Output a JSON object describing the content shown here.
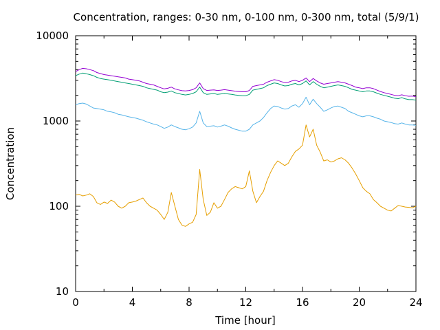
{
  "chart_data": {
    "type": "line",
    "title": "Concentration, ranges: 0-30 nm, 0-100 nm, 0-300 nm, total (5/9/1)",
    "xlabel": "Time [hour]",
    "ylabel": "Concentration",
    "xlim": [
      0,
      24
    ],
    "ylim": [
      10,
      10000
    ],
    "yscale": "log",
    "grid": false,
    "legend": "none",
    "xticks": [
      0,
      4,
      8,
      12,
      16,
      20,
      24
    ],
    "xtick_labels": [
      "0",
      "4",
      "8",
      "12",
      "16",
      "20",
      "24"
    ],
    "yticks": [
      10,
      100,
      1000,
      10000
    ],
    "ytick_labels": [
      "10",
      "100",
      "1000",
      "10000"
    ],
    "series": [
      {
        "color": "#e69f00",
        "x": [
          0,
          0.25,
          0.5,
          0.75,
          1,
          1.25,
          1.5,
          1.75,
          2,
          2.25,
          2.5,
          2.75,
          3,
          3.25,
          3.5,
          3.75,
          4,
          4.25,
          4.5,
          4.75,
          5,
          5.25,
          5.5,
          5.75,
          6,
          6.25,
          6.5,
          6.75,
          7,
          7.25,
          7.5,
          7.75,
          8,
          8.25,
          8.5,
          8.75,
          9,
          9.25,
          9.5,
          9.75,
          10,
          10.25,
          10.5,
          10.75,
          11,
          11.25,
          11.5,
          11.75,
          12,
          12.25,
          12.5,
          12.75,
          13,
          13.25,
          13.5,
          13.75,
          14,
          14.25,
          14.5,
          14.75,
          15,
          15.25,
          15.5,
          15.75,
          16,
          16.25,
          16.5,
          16.75,
          17,
          17.25,
          17.5,
          17.75,
          18,
          18.25,
          18.5,
          18.75,
          19,
          19.25,
          19.5,
          19.75,
          20,
          20.25,
          20.5,
          20.75,
          21,
          21.25,
          21.5,
          21.75,
          22,
          22.25,
          22.5,
          22.75,
          23,
          23.25,
          23.5,
          23.75,
          24
        ],
        "y": [
          135,
          138,
          132,
          135,
          140,
          130,
          110,
          105,
          112,
          108,
          118,
          112,
          100,
          95,
          100,
          110,
          112,
          115,
          120,
          125,
          110,
          100,
          95,
          90,
          80,
          70,
          85,
          145,
          100,
          70,
          60,
          58,
          62,
          65,
          80,
          270,
          120,
          78,
          85,
          110,
          95,
          100,
          120,
          145,
          160,
          170,
          165,
          160,
          170,
          260,
          150,
          110,
          130,
          150,
          200,
          250,
          300,
          340,
          320,
          300,
          320,
          380,
          440,
          470,
          520,
          900,
          650,
          800,
          520,
          430,
          340,
          350,
          330,
          340,
          360,
          370,
          350,
          320,
          280,
          240,
          200,
          165,
          150,
          140,
          120,
          110,
          100,
          95,
          90,
          88,
          95,
          102,
          100,
          98,
          97,
          96,
          100
        ]
      },
      {
        "color": "#56b4e9",
        "x": [
          0,
          0.25,
          0.5,
          0.75,
          1,
          1.25,
          1.5,
          1.75,
          2,
          2.25,
          2.5,
          2.75,
          3,
          3.25,
          3.5,
          3.75,
          4,
          4.25,
          4.5,
          4.75,
          5,
          5.25,
          5.5,
          5.75,
          6,
          6.25,
          6.5,
          6.75,
          7,
          7.25,
          7.5,
          7.75,
          8,
          8.25,
          8.5,
          8.75,
          9,
          9.25,
          9.5,
          9.75,
          10,
          10.25,
          10.5,
          10.75,
          11,
          11.25,
          11.5,
          11.75,
          12,
          12.25,
          12.5,
          12.75,
          13,
          13.25,
          13.5,
          13.75,
          14,
          14.25,
          14.5,
          14.75,
          15,
          15.25,
          15.5,
          15.75,
          16,
          16.25,
          16.5,
          16.75,
          17,
          17.25,
          17.5,
          17.75,
          18,
          18.25,
          18.5,
          18.75,
          19,
          19.25,
          19.5,
          19.75,
          20,
          20.25,
          20.5,
          20.75,
          21,
          21.25,
          21.5,
          21.75,
          22,
          22.25,
          22.5,
          22.75,
          23,
          23.25,
          23.5,
          23.75,
          24
        ],
        "y": [
          1550,
          1600,
          1620,
          1580,
          1500,
          1420,
          1400,
          1380,
          1350,
          1300,
          1280,
          1250,
          1200,
          1180,
          1150,
          1120,
          1100,
          1080,
          1050,
          1020,
          980,
          950,
          920,
          900,
          860,
          820,
          850,
          900,
          860,
          830,
          800,
          790,
          810,
          850,
          950,
          1300,
          950,
          860,
          870,
          880,
          850,
          870,
          900,
          870,
          830,
          800,
          780,
          760,
          760,
          800,
          900,
          950,
          1000,
          1100,
          1250,
          1400,
          1500,
          1480,
          1420,
          1380,
          1400,
          1500,
          1550,
          1450,
          1600,
          1900,
          1550,
          1800,
          1600,
          1450,
          1300,
          1350,
          1420,
          1480,
          1500,
          1450,
          1400,
          1300,
          1250,
          1200,
          1150,
          1120,
          1150,
          1150,
          1120,
          1080,
          1050,
          1000,
          980,
          960,
          930,
          920,
          950,
          920,
          900,
          900,
          890
        ]
      },
      {
        "color": "#009e73",
        "x": [
          0,
          0.25,
          0.5,
          0.75,
          1,
          1.25,
          1.5,
          1.75,
          2,
          2.25,
          2.5,
          2.75,
          3,
          3.25,
          3.5,
          3.75,
          4,
          4.25,
          4.5,
          4.75,
          5,
          5.25,
          5.5,
          5.75,
          6,
          6.25,
          6.5,
          6.75,
          7,
          7.25,
          7.5,
          7.75,
          8,
          8.25,
          8.5,
          8.75,
          9,
          9.25,
          9.5,
          9.75,
          10,
          10.25,
          10.5,
          10.75,
          11,
          11.25,
          11.5,
          11.75,
          12,
          12.25,
          12.5,
          12.75,
          13,
          13.25,
          13.5,
          13.75,
          14,
          14.25,
          14.5,
          14.75,
          15,
          15.25,
          15.5,
          15.75,
          16,
          16.25,
          16.5,
          16.75,
          17,
          17.25,
          17.5,
          17.75,
          18,
          18.25,
          18.5,
          18.75,
          19,
          19.25,
          19.5,
          19.75,
          20,
          20.25,
          20.5,
          20.75,
          21,
          21.25,
          21.5,
          21.75,
          22,
          22.25,
          22.5,
          22.75,
          23,
          23.25,
          23.5,
          23.75,
          24
        ],
        "y": [
          3400,
          3550,
          3650,
          3580,
          3500,
          3400,
          3250,
          3150,
          3100,
          3050,
          3000,
          2950,
          2900,
          2850,
          2800,
          2750,
          2700,
          2650,
          2600,
          2550,
          2450,
          2400,
          2350,
          2300,
          2200,
          2150,
          2180,
          2250,
          2150,
          2100,
          2050,
          2020,
          2050,
          2100,
          2200,
          2500,
          2150,
          2050,
          2080,
          2100,
          2050,
          2080,
          2100,
          2080,
          2050,
          2020,
          2000,
          1980,
          1980,
          2050,
          2300,
          2350,
          2400,
          2450,
          2600,
          2700,
          2800,
          2750,
          2650,
          2580,
          2600,
          2700,
          2750,
          2650,
          2750,
          2950,
          2650,
          2900,
          2700,
          2550,
          2450,
          2500,
          2550,
          2600,
          2650,
          2600,
          2550,
          2450,
          2350,
          2300,
          2250,
          2200,
          2250,
          2250,
          2200,
          2120,
          2050,
          2000,
          1950,
          1900,
          1850,
          1830,
          1880,
          1820,
          1780,
          1780,
          1760
        ]
      },
      {
        "color": "#9400d3",
        "x": [
          0,
          0.25,
          0.5,
          0.75,
          1,
          1.25,
          1.5,
          1.75,
          2,
          2.25,
          2.5,
          2.75,
          3,
          3.25,
          3.5,
          3.75,
          4,
          4.25,
          4.5,
          4.75,
          5,
          5.25,
          5.5,
          5.75,
          6,
          6.25,
          6.5,
          6.75,
          7,
          7.25,
          7.5,
          7.75,
          8,
          8.25,
          8.5,
          8.75,
          9,
          9.25,
          9.5,
          9.75,
          10,
          10.25,
          10.5,
          10.75,
          11,
          11.25,
          11.5,
          11.75,
          12,
          12.25,
          12.5,
          12.75,
          13,
          13.25,
          13.5,
          13.75,
          14,
          14.25,
          14.5,
          14.75,
          15,
          15.25,
          15.5,
          15.75,
          16,
          16.25,
          16.5,
          16.75,
          17,
          17.25,
          17.5,
          17.75,
          18,
          18.25,
          18.5,
          18.75,
          19,
          19.25,
          19.5,
          19.75,
          20,
          20.25,
          20.5,
          20.75,
          21,
          21.25,
          21.5,
          21.75,
          22,
          22.25,
          22.5,
          22.75,
          23,
          23.25,
          23.5,
          23.75,
          24
        ],
        "y": [
          3800,
          4000,
          4150,
          4100,
          4000,
          3900,
          3700,
          3600,
          3500,
          3450,
          3400,
          3350,
          3300,
          3250,
          3200,
          3100,
          3050,
          3000,
          2950,
          2850,
          2750,
          2700,
          2650,
          2550,
          2450,
          2380,
          2420,
          2500,
          2380,
          2320,
          2270,
          2250,
          2280,
          2330,
          2450,
          2800,
          2400,
          2280,
          2300,
          2320,
          2280,
          2300,
          2330,
          2300,
          2270,
          2240,
          2220,
          2200,
          2200,
          2280,
          2550,
          2600,
          2650,
          2700,
          2850,
          2950,
          3050,
          3000,
          2900,
          2820,
          2850,
          2950,
          3000,
          2900,
          3000,
          3200,
          2900,
          3150,
          2950,
          2800,
          2700,
          2750,
          2800,
          2850,
          2900,
          2850,
          2800,
          2700,
          2600,
          2500,
          2450,
          2400,
          2450,
          2450,
          2400,
          2300,
          2220,
          2150,
          2100,
          2050,
          2000,
          1980,
          2030,
          1980,
          1950,
          1960,
          1930
        ]
      }
    ]
  }
}
